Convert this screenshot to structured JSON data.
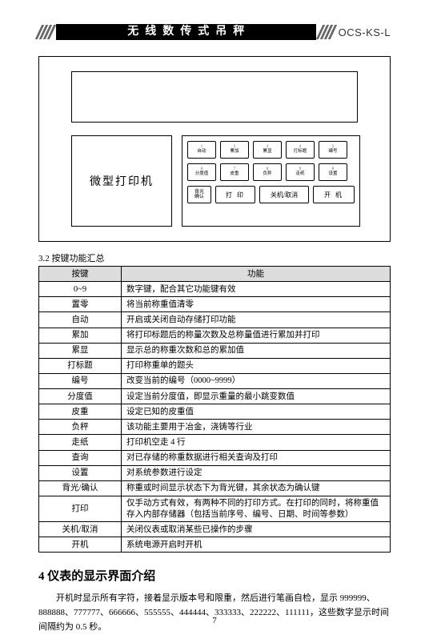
{
  "header": {
    "title": "无线数传式吊秤",
    "model": "OCS-KS-L"
  },
  "device": {
    "printer_label": "微型打印机",
    "keypad": {
      "row1": [
        {
          "sup": "1",
          "label": "自动"
        },
        {
          "sup": "2",
          "label": "累加"
        },
        {
          "sup": "3",
          "label": "累显"
        },
        {
          "sup": "4",
          "label": "打标题"
        },
        {
          "sup": "5",
          "label": "编号"
        }
      ],
      "row2": [
        {
          "sup": "6",
          "label": "分度值"
        },
        {
          "sup": "7",
          "label": "皮重"
        },
        {
          "sup": "8",
          "label": "负秤"
        },
        {
          "sup": "9",
          "label": "走纸"
        },
        {
          "sup": "0",
          "label": "设置"
        }
      ],
      "row3_left": {
        "top": "背光",
        "bottom": "确认"
      },
      "row3_print": "打 印",
      "row3_off": "关机/取消",
      "row3_on": "开 机"
    }
  },
  "table": {
    "caption": "3.2 按键功能汇总",
    "headers": [
      "按键",
      "功能"
    ],
    "rows": [
      [
        "0~9",
        "数字键，配合其它功能键有效"
      ],
      [
        "置零",
        "将当前称重值清零"
      ],
      [
        "自动",
        "开启或关闭自动存储打印功能"
      ],
      [
        "累加",
        "将打印标题后的称量次数及总称量值进行累加并打印"
      ],
      [
        "累显",
        "显示总的称重次数和总的累加值"
      ],
      [
        "打标题",
        "打印称重单的题头"
      ],
      [
        "编号",
        "改变当前的编号（0000~9999）"
      ],
      [
        "分度值",
        "设定当前分度值，即显示重量的最小跳变数值"
      ],
      [
        "皮重",
        "设定已知的皮重值"
      ],
      [
        "负秤",
        "该功能主要用于冶金，浇铸等行业"
      ],
      [
        "走纸",
        "打印机空走 4 行"
      ],
      [
        "查询",
        "对已存储的称重数据进行相关查询及打印"
      ],
      [
        "设置",
        "对系统参数进行设定"
      ],
      [
        "背光/确认",
        "称重或时间显示状态下为背光键，其余状态为确认键"
      ],
      [
        "打印",
        "仅手动方式有效，有两种不同的打印方式。在打印的同时，将称重值存入内部存储器（包括当前序号、编号、日期、时间等参数）"
      ],
      [
        "关机/取消",
        "关闭仪表或取消某些已操作的步骤"
      ],
      [
        "开机",
        "系统电源开启时开机"
      ]
    ]
  },
  "section": {
    "heading": "4 仪表的显示界面介绍",
    "paragraph": "开机时显示所有字符，接着显示版本号和限重，然后进行笔画自检，显示 999999、888888、777777、666666、555555、444444、333333、222222、111111，这些数字显示时间间隔约为 0.5 秒。"
  },
  "page_number": "7"
}
